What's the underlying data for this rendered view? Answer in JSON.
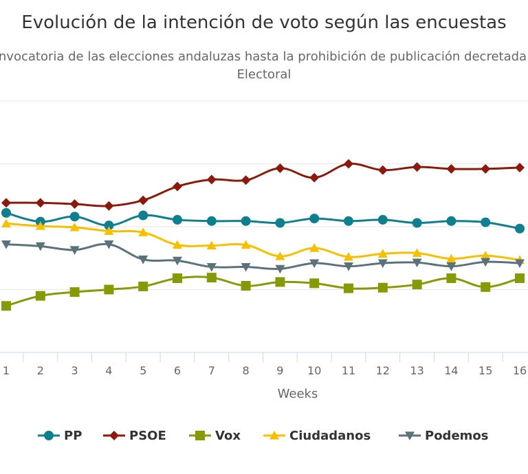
{
  "chart_data": {
    "type": "line",
    "title": "Evolución de la intención de voto según las encuestas",
    "subtitle": "Desde la convocatoria de las elecciones andaluzas hasta la prohibición de publicación decretada por la Junta Electoral",
    "xlabel": "Weeks",
    "ylabel": "",
    "x": [
      1,
      2,
      3,
      4,
      5,
      6,
      7,
      8,
      9,
      10,
      11,
      12,
      13,
      14,
      15,
      16
    ],
    "ylim": [
      0,
      40
    ],
    "yticks": [
      0,
      10,
      20,
      30,
      40
    ],
    "grid": true,
    "legend_position": "bottom",
    "series": [
      {
        "name": "PP",
        "color": "#0d7f8f",
        "marker": "circle",
        "values": [
          22.2,
          20.8,
          21.6,
          20.2,
          21.8,
          21.1,
          20.9,
          20.9,
          20.6,
          21.3,
          20.9,
          21.1,
          20.6,
          20.9,
          20.7,
          19.7
        ]
      },
      {
        "name": "PSOE",
        "color": "#8b1a0c",
        "marker": "diamond",
        "values": [
          23.8,
          23.8,
          23.6,
          23.3,
          24.2,
          26.4,
          27.5,
          27.4,
          29.3,
          27.8,
          30.0,
          29.0,
          29.5,
          29.2,
          29.2,
          29.4
        ]
      },
      {
        "name": "Vox",
        "color": "#869a06",
        "marker": "square",
        "values": [
          7.4,
          9.0,
          9.6,
          10.0,
          10.5,
          11.8,
          11.9,
          10.6,
          11.2,
          11.0,
          10.2,
          10.3,
          10.8,
          11.8,
          10.4,
          11.8
        ]
      },
      {
        "name": "Ciudadanos",
        "color": "#f7bf00",
        "marker": "triangle-up",
        "values": [
          20.5,
          20.1,
          19.9,
          19.3,
          19.1,
          17.1,
          17.0,
          17.1,
          15.3,
          16.6,
          15.2,
          15.7,
          15.8,
          14.9,
          15.4,
          14.7
        ]
      },
      {
        "name": "Podemos",
        "color": "#5c727a",
        "marker": "triangle-down",
        "values": [
          17.2,
          16.9,
          16.3,
          17.2,
          14.8,
          14.6,
          13.6,
          13.6,
          13.3,
          14.2,
          13.7,
          14.2,
          14.3,
          13.7,
          14.4,
          14.2
        ]
      }
    ]
  }
}
